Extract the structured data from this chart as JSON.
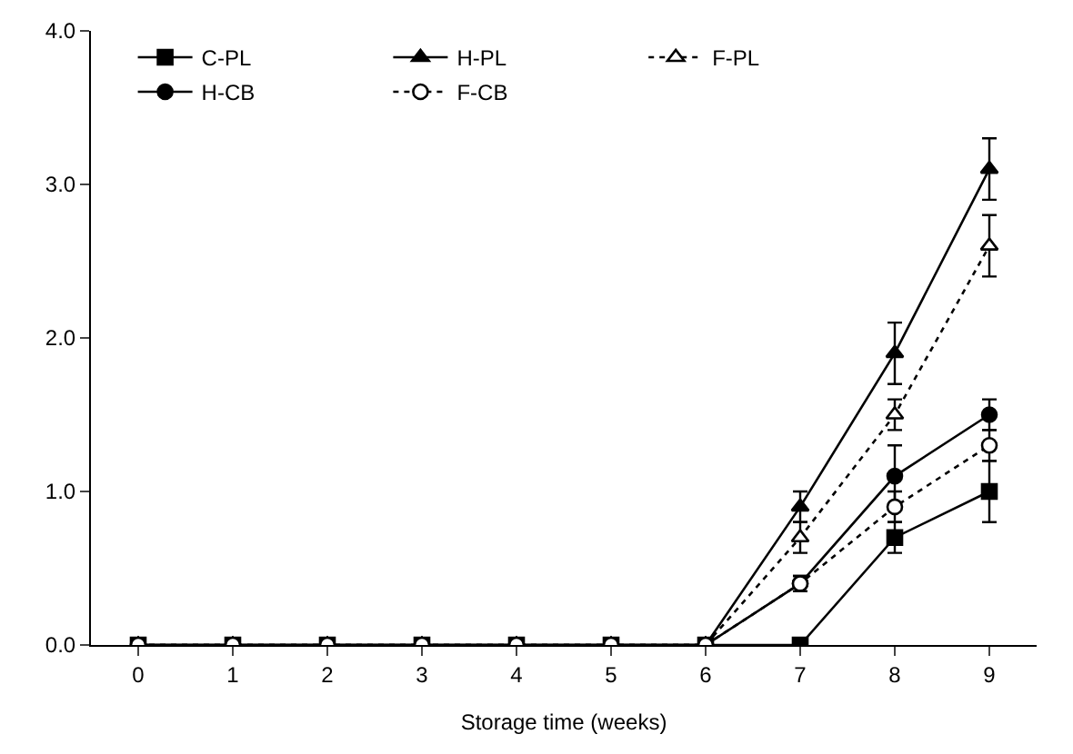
{
  "chart_data": {
    "type": "line",
    "xlabel": "Storage time (weeks)",
    "x": [
      0,
      1,
      2,
      3,
      4,
      5,
      6,
      7,
      8,
      9
    ],
    "xlim": [
      -0.5,
      9.5
    ],
    "xticks": [
      0,
      1,
      2,
      3,
      4,
      5,
      6,
      7,
      8,
      9
    ],
    "ylim": [
      0,
      4
    ],
    "yticks": [
      {
        "value": 0,
        "label": "0.0"
      },
      {
        "value": 1,
        "label": "1.0"
      },
      {
        "value": 2,
        "label": "2.0"
      },
      {
        "value": 3,
        "label": "3.0"
      },
      {
        "value": 4,
        "label": "4.0"
      }
    ],
    "legend": "top left",
    "series": [
      {
        "name": "C-PL",
        "color": "#000000",
        "marker": "square",
        "line_style": "solid",
        "values": [
          0,
          0,
          0,
          0,
          0,
          0,
          0,
          0,
          0.7,
          1.0
        ],
        "errors": [
          null,
          null,
          null,
          null,
          null,
          null,
          null,
          null,
          0.1,
          0.2
        ]
      },
      {
        "name": "H-PL",
        "color": "#000000",
        "marker": "triangle",
        "line_style": "solid",
        "values": [
          0,
          0,
          0,
          0,
          0,
          0,
          0,
          0.9,
          1.9,
          3.1
        ],
        "errors": [
          null,
          null,
          null,
          null,
          null,
          null,
          null,
          0.1,
          0.2,
          0.2
        ]
      },
      {
        "name": "F-PL",
        "color": "#000000",
        "marker": "triangle",
        "line_style": "dotted",
        "values": [
          0,
          0,
          0,
          0,
          0,
          0,
          0,
          0.7,
          1.5,
          2.6
        ],
        "errors": [
          null,
          null,
          null,
          null,
          null,
          null,
          null,
          0.1,
          0.1,
          0.2
        ]
      },
      {
        "name": "H-CB",
        "color": "#000000",
        "marker": "circle",
        "line_style": "solid",
        "values": [
          0,
          0,
          0,
          0,
          0,
          0,
          0,
          0.4,
          1.1,
          1.5
        ],
        "errors": [
          null,
          null,
          null,
          null,
          null,
          null,
          null,
          0.05,
          0.2,
          0.1
        ]
      },
      {
        "name": "F-CB",
        "color": "#000000",
        "marker": "circle",
        "line_style": "dotted",
        "values": [
          0,
          0,
          0,
          0,
          0,
          0,
          0,
          0.4,
          0.9,
          1.3
        ],
        "errors": [
          null,
          null,
          null,
          null,
          null,
          null,
          null,
          0.05,
          0.1,
          0.1
        ]
      }
    ]
  }
}
